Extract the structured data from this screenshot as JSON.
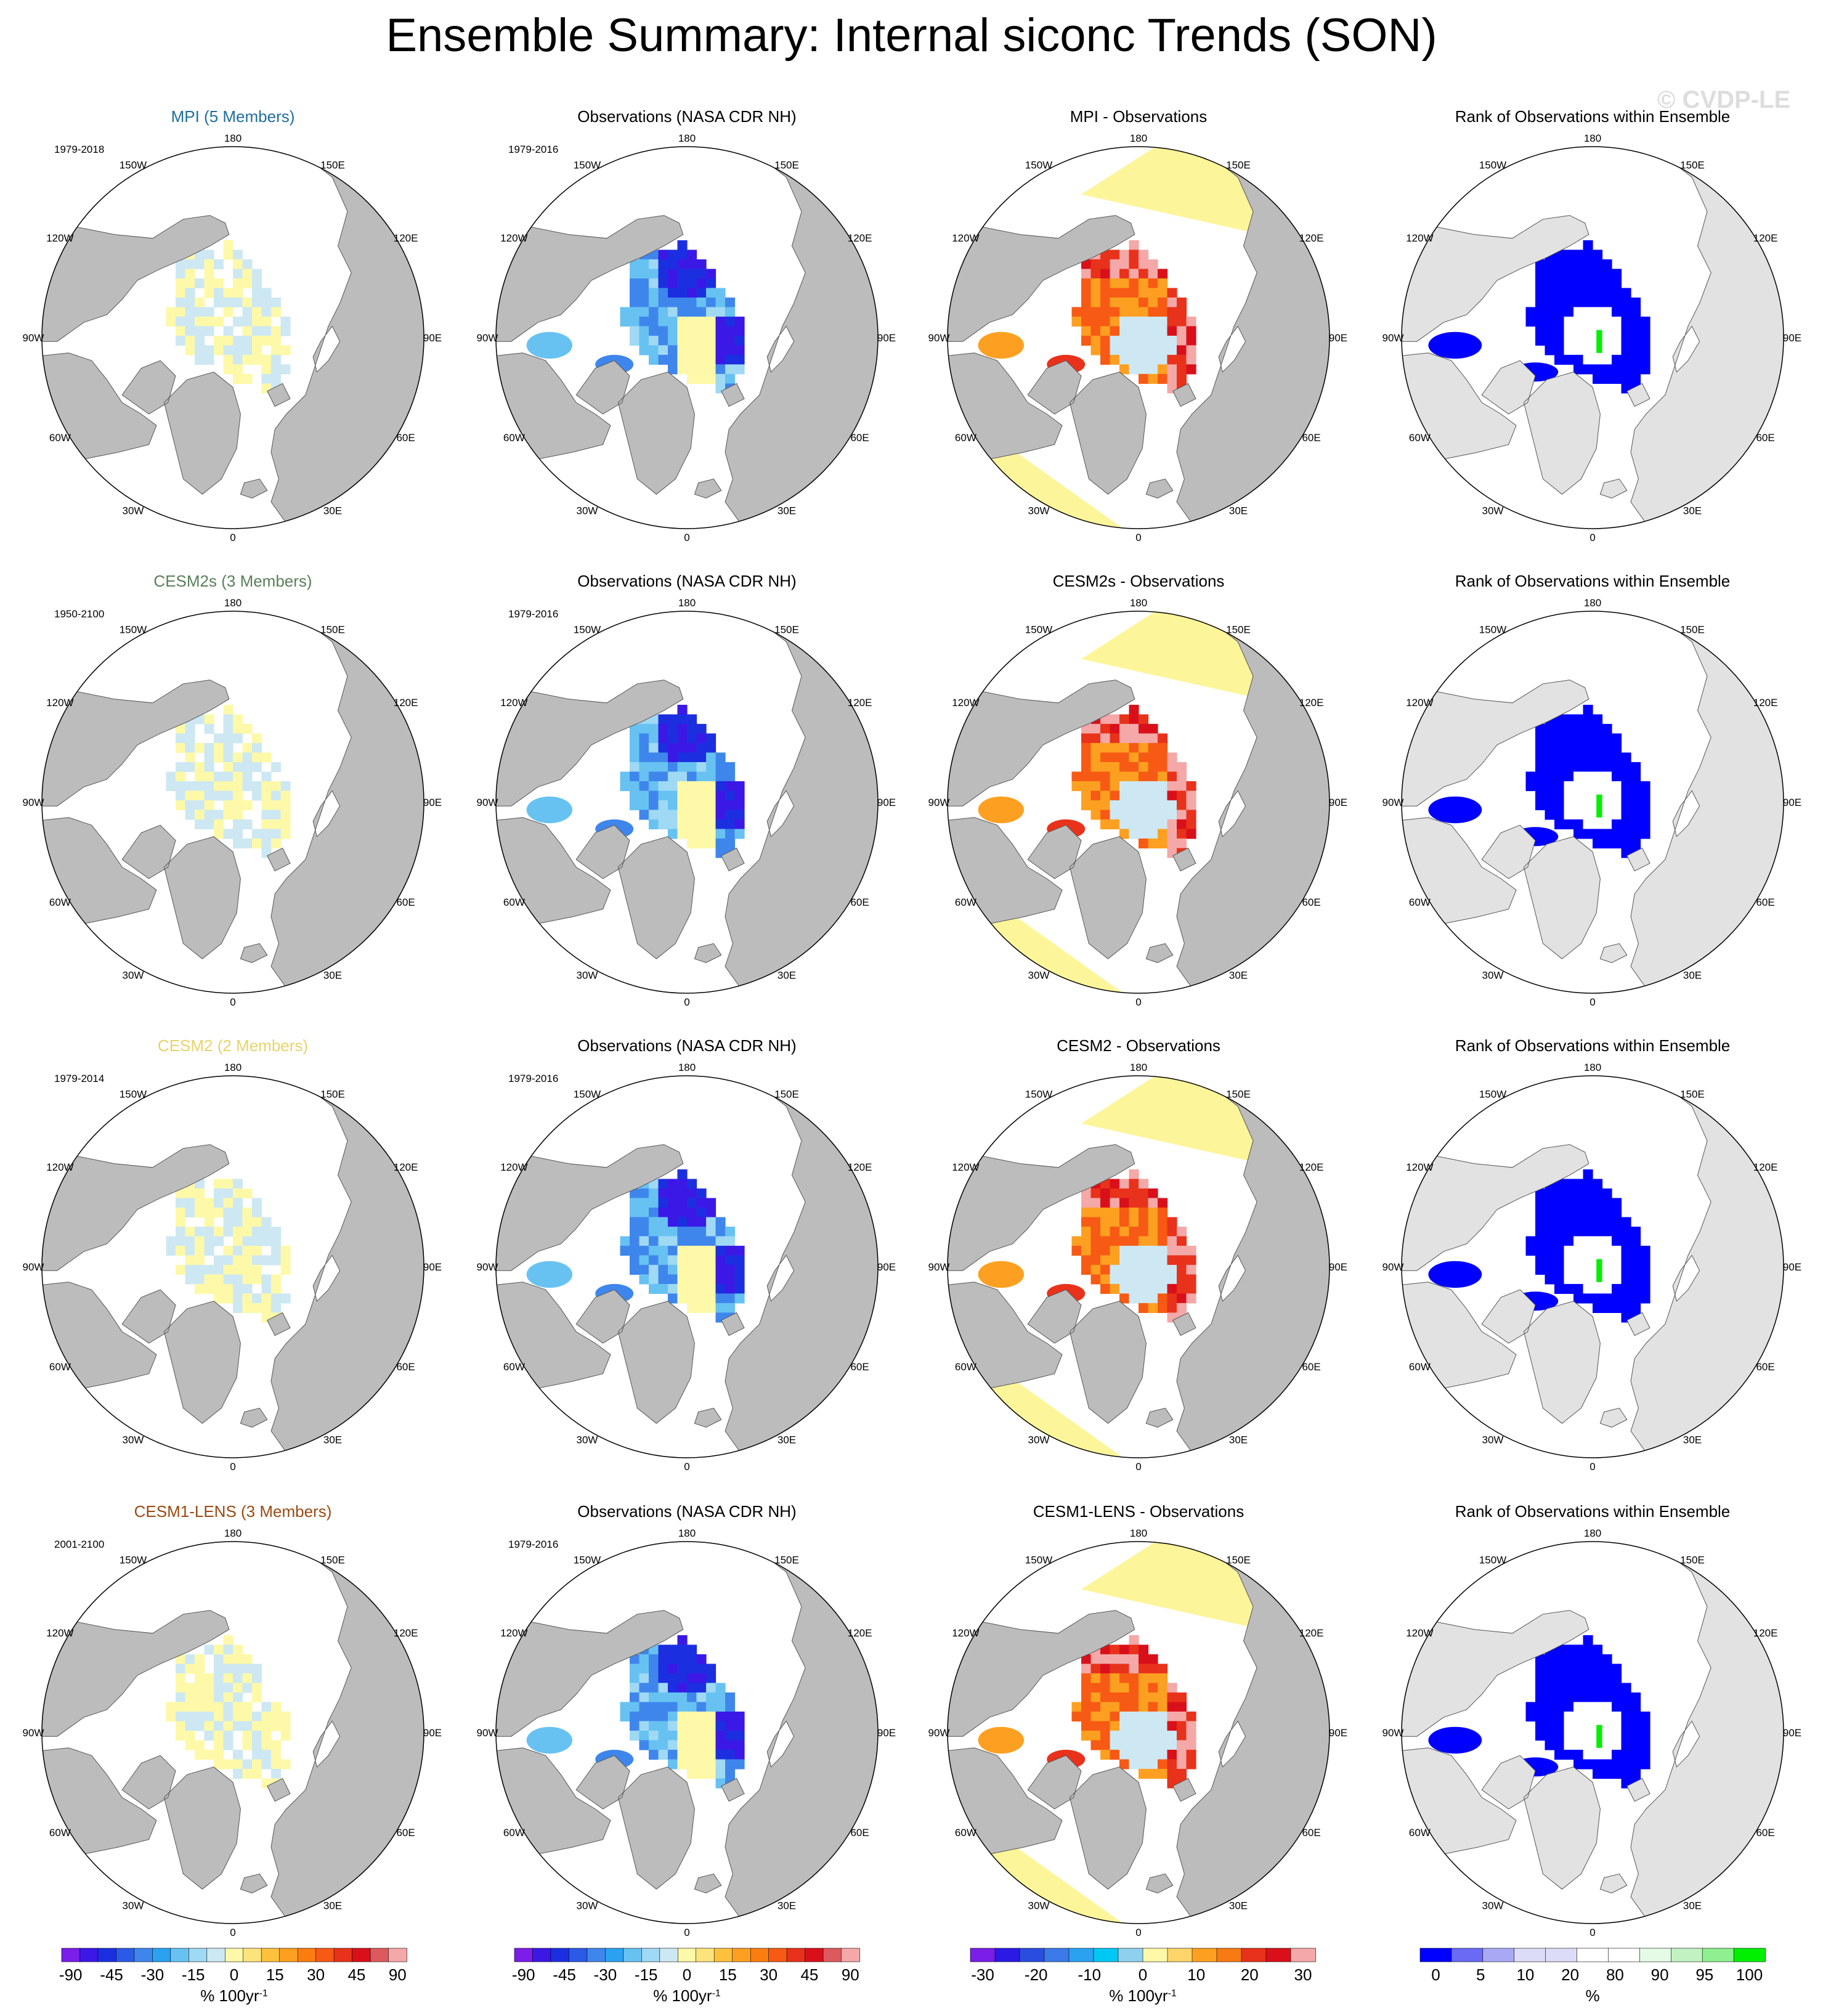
{
  "page_title": "Ensemble Summary: Internal siconc Trends (SON)",
  "watermark": "© CVDP-LE",
  "longitude_labels": [
    "180",
    "150E",
    "120E",
    "90E",
    "60E",
    "30E",
    "0",
    "30W",
    "60W",
    "90W",
    "120W",
    "150W"
  ],
  "colors": {
    "land": "#bcbcbc",
    "land_light": "#e2e2e2",
    "ocean": "#ffffff",
    "title_mpi": "#1f6e9e",
    "title_cesm2s": "#5a7f5a",
    "title_cesm2": "#e8d36a",
    "title_cesm1": "#9a4a12"
  },
  "rows": [
    {
      "model_title": "MPI (5 Members)",
      "model_color": "#1f6e9e",
      "model_period": "1979-2018",
      "obs_title": "Observations (NASA CDR NH)",
      "obs_period": "1979-2016",
      "diff_title": "MPI - Observations",
      "rank_title": "Rank of Observations within Ensemble"
    },
    {
      "model_title": "CESM2s (3 Members)",
      "model_color": "#5a7f5a",
      "model_period": "1950-2100",
      "obs_title": "Observations (NASA CDR NH)",
      "obs_period": "1979-2016",
      "diff_title": "CESM2s - Observations",
      "rank_title": "Rank of Observations within Ensemble"
    },
    {
      "model_title": "CESM2 (2 Members)",
      "model_color": "#e8d36a",
      "model_period": "1979-2014",
      "obs_title": "Observations (NASA CDR NH)",
      "obs_period": "1979-2016",
      "diff_title": "CESM2 - Observations",
      "rank_title": "Rank of Observations within Ensemble"
    },
    {
      "model_title": "CESM1-LENS (3 Members)",
      "model_color": "#9a4a12",
      "model_period": "2001-2100",
      "obs_title": "Observations (NASA CDR NH)",
      "obs_period": "1979-2016",
      "diff_title": "CESM1-LENS - Observations",
      "rank_title": "Rank of Observations within Ensemble"
    }
  ],
  "colorbars": [
    {
      "colors": [
        "#7a1ee8",
        "#3b18e6",
        "#1c2fe0",
        "#2b5ae6",
        "#3f86ec",
        "#2aa2f0",
        "#67c2f2",
        "#9fd9f4",
        "#cde8f3",
        "#fdf9a8",
        "#fde37c",
        "#fdc13e",
        "#fda021",
        "#fb7d10",
        "#f75a14",
        "#e8321b",
        "#d9101a",
        "#dc5a5e",
        "#f4a8a8"
      ],
      "labels": [
        "-90",
        "-45",
        "-30",
        "-15",
        "0",
        "15",
        "30",
        "45",
        "90"
      ],
      "unit_main": "% 100yr",
      "unit_sup": "-1"
    },
    {
      "colors": [
        "#7a1ee8",
        "#3b18e6",
        "#1c2fe0",
        "#2b5ae6",
        "#3f86ec",
        "#2aa2f0",
        "#67c2f2",
        "#9fd9f4",
        "#cde8f3",
        "#fdf9a8",
        "#fde37c",
        "#fdc13e",
        "#fda021",
        "#fb7d10",
        "#f75a14",
        "#e8321b",
        "#d9101a",
        "#dc5a5e",
        "#f4a8a8"
      ],
      "labels": [
        "-90",
        "-45",
        "-30",
        "-15",
        "0",
        "15",
        "30",
        "45",
        "90"
      ],
      "unit_main": "% 100yr",
      "unit_sup": "-1"
    },
    {
      "colors": [
        "#7a1ee8",
        "#2b1ae6",
        "#2a4de0",
        "#3b7ae8",
        "#2aa2f0",
        "#00c8f4",
        "#8fd0ee",
        "#fdf9a8",
        "#fdd56a",
        "#fda021",
        "#f87a12",
        "#e8321b",
        "#d9101a",
        "#f4a8a8"
      ],
      "labels": [
        "-30",
        "-20",
        "-10",
        "0",
        "10",
        "20",
        "30"
      ],
      "unit_main": "% 100yr",
      "unit_sup": "-1"
    },
    {
      "colors": [
        "#0000ff",
        "#6a6af4",
        "#a8a8f4",
        "#dcdcf8",
        "#dcdcf8",
        "#ffffff",
        "#ffffff",
        "#e6fbe6",
        "#c2f2c2",
        "#8ef08e",
        "#00f000"
      ],
      "labels": [
        "0",
        "5",
        "10",
        "20",
        "80",
        "90",
        "95",
        "100"
      ],
      "unit_main": "%",
      "unit_sup": ""
    }
  ]
}
